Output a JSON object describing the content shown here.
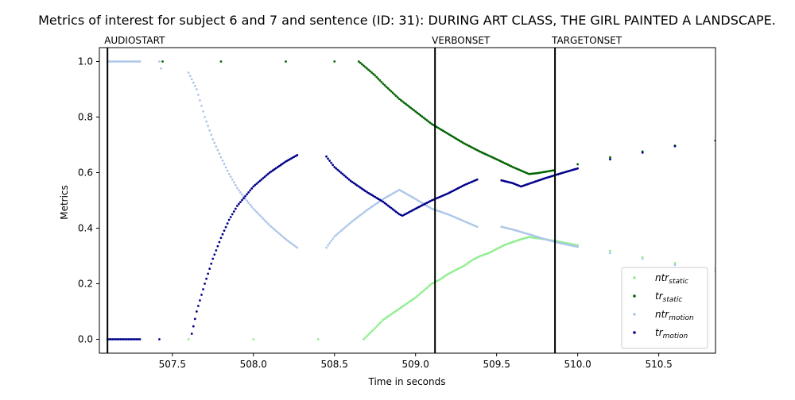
{
  "chart_data": {
    "type": "scatter",
    "title": "Metrics of interest for subject 6 and 7 and sentence (ID: 31): DURING ART CLASS, THE GIRL PAINTED A LANDSCAPE.",
    "xlabel": "Time in seconds",
    "ylabel": "Metrics",
    "xlim": [
      507.05,
      510.85
    ],
    "ylim": [
      -0.05,
      1.05
    ],
    "xticks": [
      507.5,
      508.0,
      508.5,
      509.0,
      509.5,
      510.0,
      510.5
    ],
    "xtick_labels": [
      "507.5",
      "508.0",
      "508.5",
      "509.0",
      "509.5",
      "510.0",
      "510.5"
    ],
    "yticks": [
      0.0,
      0.2,
      0.4,
      0.6,
      0.8,
      1.0
    ],
    "ytick_labels": [
      "0.0",
      "0.2",
      "0.4",
      "0.6",
      "0.8",
      "1.0"
    ],
    "grid": false,
    "legend_position": "lower-right",
    "vertical_lines": [
      {
        "label": "AUDIOSTART",
        "x": 507.1
      },
      {
        "label": "VERBONSET",
        "x": 509.12
      },
      {
        "label": "TARGETONSET",
        "x": 509.86
      }
    ],
    "series": [
      {
        "name": "ntr_static",
        "legend_base": "ntr",
        "legend_sub": "static",
        "color": "#90ee90",
        "points": [
          [
            507.1,
            0.0
          ],
          [
            507.6,
            0.0
          ],
          [
            508.0,
            0.0
          ],
          [
            508.4,
            0.0
          ],
          [
            508.68,
            0.0
          ],
          [
            508.75,
            0.04
          ],
          [
            508.8,
            0.07
          ],
          [
            508.85,
            0.09
          ],
          [
            508.9,
            0.11
          ],
          [
            508.95,
            0.13
          ],
          [
            509.0,
            0.15
          ],
          [
            509.05,
            0.175
          ],
          [
            509.1,
            0.2
          ],
          [
            509.15,
            0.215
          ],
          [
            509.2,
            0.235
          ],
          [
            509.25,
            0.25
          ],
          [
            509.3,
            0.265
          ],
          [
            509.35,
            0.285
          ],
          [
            509.4,
            0.3
          ],
          [
            509.45,
            0.31
          ],
          [
            509.5,
            0.325
          ],
          [
            509.55,
            0.34
          ],
          [
            509.6,
            0.35
          ],
          [
            509.65,
            0.36
          ],
          [
            509.7,
            0.368
          ],
          [
            509.8,
            0.36
          ],
          [
            509.9,
            0.35
          ],
          [
            510.0,
            0.338
          ],
          [
            510.2,
            0.318
          ],
          [
            510.4,
            0.295
          ],
          [
            510.6,
            0.275
          ],
          [
            510.85,
            0.255
          ]
        ]
      },
      {
        "name": "tr_static",
        "legend_base": "tr",
        "legend_sub": "static",
        "color": "#006400",
        "points": [
          [
            507.44,
            1.0
          ],
          [
            507.8,
            1.0
          ],
          [
            508.2,
            1.0
          ],
          [
            508.5,
            1.0
          ],
          [
            508.65,
            1.0
          ],
          [
            508.7,
            0.975
          ],
          [
            508.75,
            0.95
          ],
          [
            508.8,
            0.92
          ],
          [
            508.9,
            0.865
          ],
          [
            509.0,
            0.82
          ],
          [
            509.1,
            0.775
          ],
          [
            509.2,
            0.74
          ],
          [
            509.3,
            0.705
          ],
          [
            509.4,
            0.675
          ],
          [
            509.5,
            0.648
          ],
          [
            509.6,
            0.62
          ],
          [
            509.7,
            0.595
          ],
          [
            509.75,
            0.598
          ],
          [
            509.85,
            0.608
          ],
          [
            510.0,
            0.63
          ],
          [
            510.2,
            0.655
          ],
          [
            510.4,
            0.676
          ],
          [
            510.6,
            0.697
          ],
          [
            510.85,
            0.715
          ]
        ]
      },
      {
        "name": "ntr_motion",
        "legend_base": "ntr",
        "legend_sub": "motion",
        "color": "#aec7e8",
        "points": [
          [
            507.1,
            1.0
          ],
          [
            507.2,
            1.0
          ],
          [
            507.3,
            1.0
          ],
          [
            507.42,
            1.0
          ],
          [
            507.43,
            0.975
          ],
          [
            507.6,
            0.96
          ],
          [
            507.65,
            0.9
          ],
          [
            507.7,
            0.8
          ],
          [
            507.75,
            0.72
          ],
          [
            507.8,
            0.655
          ],
          [
            507.85,
            0.595
          ],
          [
            507.9,
            0.545
          ],
          [
            507.95,
            0.505
          ],
          [
            508.0,
            0.47
          ],
          [
            508.05,
            0.44
          ],
          [
            508.1,
            0.41
          ],
          [
            508.15,
            0.385
          ],
          [
            508.2,
            0.36
          ],
          [
            508.27,
            0.33
          ],
          [
            508.45,
            0.33
          ],
          [
            508.5,
            0.37
          ],
          [
            508.6,
            0.42
          ],
          [
            508.7,
            0.465
          ],
          [
            508.8,
            0.505
          ],
          [
            508.9,
            0.538
          ],
          [
            509.0,
            0.505
          ],
          [
            509.1,
            0.47
          ],
          [
            509.2,
            0.45
          ],
          [
            509.3,
            0.425
          ],
          [
            509.38,
            0.405
          ],
          [
            509.53,
            0.405
          ],
          [
            509.6,
            0.395
          ],
          [
            509.7,
            0.378
          ],
          [
            509.8,
            0.36
          ],
          [
            509.9,
            0.345
          ],
          [
            510.0,
            0.333
          ],
          [
            510.2,
            0.31
          ],
          [
            510.4,
            0.29
          ],
          [
            510.6,
            0.268
          ],
          [
            510.85,
            0.245
          ]
        ]
      },
      {
        "name": "tr_motion",
        "legend_base": "tr",
        "legend_sub": "motion",
        "color": "#00008b",
        "points": [
          [
            507.1,
            0.0
          ],
          [
            507.2,
            0.0
          ],
          [
            507.3,
            0.0
          ],
          [
            507.42,
            0.0
          ],
          [
            507.62,
            0.02
          ],
          [
            507.65,
            0.1
          ],
          [
            507.7,
            0.2
          ],
          [
            507.75,
            0.29
          ],
          [
            507.8,
            0.365
          ],
          [
            507.85,
            0.43
          ],
          [
            507.9,
            0.48
          ],
          [
            507.95,
            0.515
          ],
          [
            508.0,
            0.55
          ],
          [
            508.05,
            0.575
          ],
          [
            508.1,
            0.6
          ],
          [
            508.15,
            0.62
          ],
          [
            508.2,
            0.64
          ],
          [
            508.27,
            0.663
          ],
          [
            508.45,
            0.658
          ],
          [
            508.5,
            0.62
          ],
          [
            508.6,
            0.57
          ],
          [
            508.7,
            0.53
          ],
          [
            508.8,
            0.495
          ],
          [
            508.9,
            0.45
          ],
          [
            508.92,
            0.445
          ],
          [
            509.0,
            0.47
          ],
          [
            509.1,
            0.5
          ],
          [
            509.2,
            0.525
          ],
          [
            509.3,
            0.555
          ],
          [
            509.38,
            0.575
          ],
          [
            509.53,
            0.572
          ],
          [
            509.6,
            0.562
          ],
          [
            509.65,
            0.55
          ],
          [
            509.7,
            0.56
          ],
          [
            509.8,
            0.58
          ],
          [
            509.9,
            0.598
          ],
          [
            510.0,
            0.615
          ],
          [
            510.2,
            0.648
          ],
          [
            510.4,
            0.672
          ],
          [
            510.6,
            0.695
          ],
          [
            510.85,
            0.715
          ]
        ]
      }
    ]
  }
}
